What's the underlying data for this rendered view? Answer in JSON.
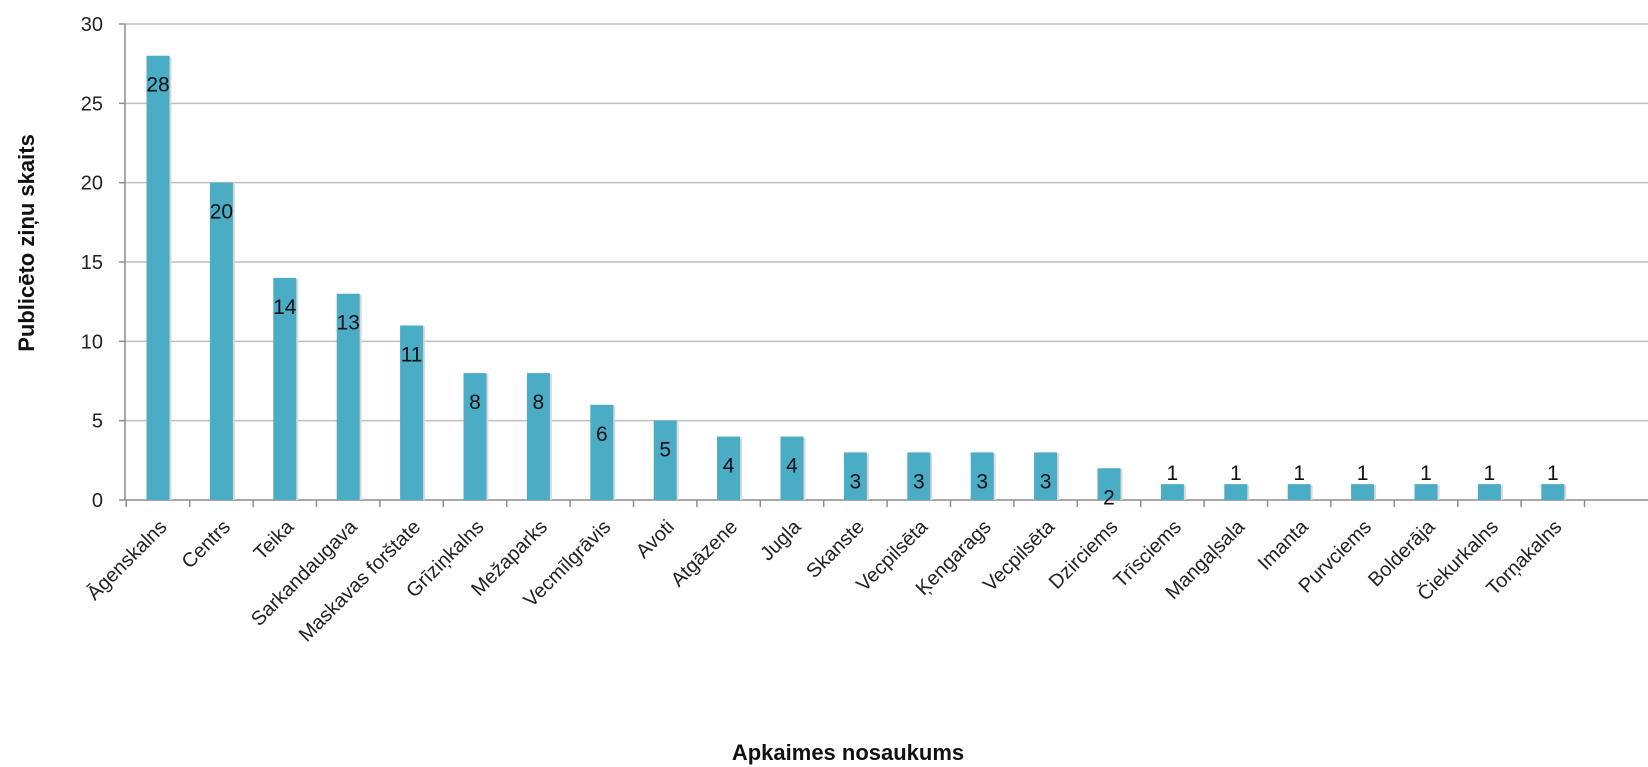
{
  "chart_data": {
    "type": "bar",
    "title": "",
    "xlabel": "Apkaimes nosaukums",
    "ylabel": "Publicēto ziņu skaits",
    "ylim": [
      0,
      30
    ],
    "yticks": [
      0,
      5,
      10,
      15,
      20,
      25,
      30
    ],
    "grid": true,
    "legend": "none",
    "bar_color": "#4bacc6",
    "categories": [
      "Āgenskalns",
      "Centrs",
      "Teika",
      "Sarkandaugava",
      "Maskavas forštate",
      "Grīziņkalns",
      "Mežaparks",
      "Vecmīlgrāvis",
      "Avoti",
      "Atgāzene",
      "Jugla",
      "Skanste",
      "Vecpilsēta",
      "Ķengarags",
      "Vecpilsēta",
      "Dzirciems",
      "Trīsciems",
      "Mangaļsala",
      "Imanta",
      "Purvciems",
      "Bolderāja",
      "Čiekurkalns",
      "Torņakalns"
    ],
    "values": [
      28,
      20,
      14,
      13,
      11,
      8,
      8,
      6,
      5,
      4,
      4,
      3,
      3,
      3,
      3,
      2,
      1,
      1,
      1,
      1,
      1,
      1,
      1
    ]
  }
}
